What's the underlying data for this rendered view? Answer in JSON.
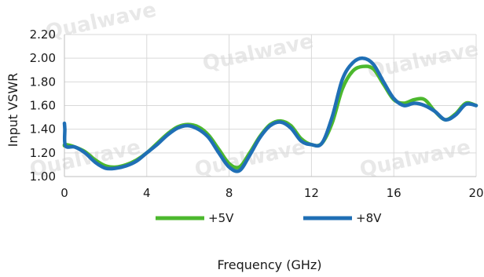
{
  "watermark_text": "Qualwave",
  "chart_data": {
    "type": "line",
    "xlabel": "Frequency (GHz)",
    "ylabel": "Input VSWR",
    "xlim": [
      0,
      20
    ],
    "ylim": [
      1.0,
      2.2
    ],
    "x_ticks": [
      0,
      4,
      8,
      12,
      16,
      20
    ],
    "y_ticks": [
      1.0,
      1.2,
      1.4,
      1.6,
      1.8,
      2.0,
      2.2
    ],
    "y_tick_labels": [
      "1.00",
      "1.20",
      "1.40",
      "1.60",
      "1.80",
      "2.00",
      "2.20"
    ],
    "grid": true,
    "legend_position": "bottom",
    "series": [
      {
        "name": "+5V",
        "color": "#4cb82e",
        "x": [
          0,
          0.05,
          0.5,
          1.0,
          1.5,
          2.0,
          2.5,
          3.0,
          3.5,
          4.0,
          4.5,
          5.0,
          5.5,
          6.0,
          6.5,
          7.0,
          7.5,
          8.0,
          8.5,
          9.0,
          9.5,
          10.0,
          10.5,
          11.0,
          11.5,
          12.0,
          12.5,
          13.0,
          13.5,
          14.0,
          14.5,
          15.0,
          15.5,
          16.0,
          16.5,
          17.0,
          17.5,
          18.0,
          18.5,
          19.0,
          19.5,
          20.0
        ],
        "y": [
          1.26,
          1.27,
          1.25,
          1.21,
          1.14,
          1.09,
          1.08,
          1.1,
          1.14,
          1.2,
          1.28,
          1.36,
          1.42,
          1.44,
          1.42,
          1.35,
          1.23,
          1.11,
          1.08,
          1.2,
          1.34,
          1.44,
          1.47,
          1.43,
          1.32,
          1.27,
          1.28,
          1.45,
          1.74,
          1.89,
          1.93,
          1.91,
          1.78,
          1.65,
          1.62,
          1.65,
          1.65,
          1.55,
          1.48,
          1.53,
          1.62,
          1.6
        ]
      },
      {
        "name": "+8V",
        "color": "#1f6fb5",
        "x": [
          0,
          0.02,
          0.05,
          0.5,
          1.0,
          1.5,
          2.0,
          2.5,
          3.0,
          3.5,
          4.0,
          4.5,
          5.0,
          5.5,
          6.0,
          6.5,
          7.0,
          7.5,
          8.0,
          8.5,
          9.0,
          9.5,
          10.0,
          10.5,
          11.0,
          11.5,
          12.0,
          12.5,
          13.0,
          13.5,
          14.0,
          14.5,
          15.0,
          15.5,
          16.0,
          16.5,
          17.0,
          17.5,
          18.0,
          18.5,
          19.0,
          19.5,
          20.0
        ],
        "y": [
          1.45,
          1.4,
          1.26,
          1.25,
          1.2,
          1.12,
          1.07,
          1.07,
          1.09,
          1.13,
          1.2,
          1.27,
          1.35,
          1.41,
          1.43,
          1.4,
          1.33,
          1.2,
          1.08,
          1.05,
          1.18,
          1.33,
          1.43,
          1.46,
          1.41,
          1.3,
          1.27,
          1.28,
          1.5,
          1.82,
          1.96,
          2.0,
          1.95,
          1.8,
          1.66,
          1.6,
          1.62,
          1.6,
          1.55,
          1.48,
          1.52,
          1.61,
          1.6
        ]
      }
    ]
  }
}
